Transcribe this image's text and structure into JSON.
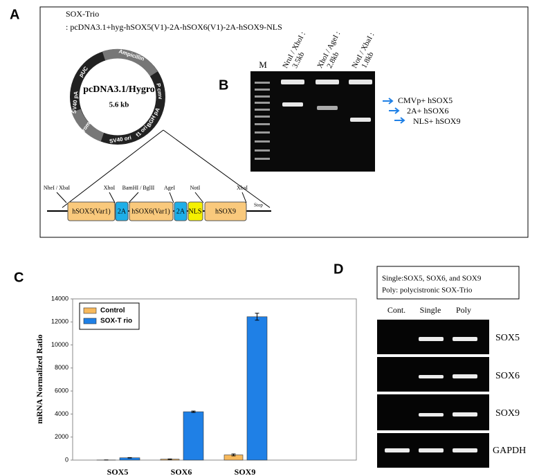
{
  "panel_a": {
    "letter": "A",
    "construct_name": "SOX-Trio",
    "construct_description": ": pcDNA3.1+hyg-hSOX5(V1)-2A-hSOX6(V1)-2A-hSOX9-NLS",
    "plasmid": {
      "name": "pcDNA3.1/Hygro",
      "size": "5.6 kb",
      "features": [
        "Ampicillin",
        "P cmv",
        "BGH pA",
        "f1 ori",
        "SV40 ori",
        "Hygromycin",
        "SV40 pA",
        "pUC"
      ]
    },
    "insert": {
      "sites": [
        "NheI / XbaI",
        "XhoI",
        "BamHI / BglII",
        "AgeI",
        "NotI",
        "XbaI"
      ],
      "elements": [
        "hSOX5(Var1)",
        "2A",
        "hSOX6(Var1)",
        "2A",
        "NLS",
        "hSOX9"
      ],
      "stop": "Stop"
    }
  },
  "panel_b": {
    "letter": "B",
    "marker": "M",
    "lanes": [
      {
        "enzymes": "NruI / XhoI :",
        "size": "3.5kb"
      },
      {
        "enzymes": "XhoI / AgeI :",
        "size": "2.8kb"
      },
      {
        "enzymes": "NotI / XbaI :",
        "size": "1.8kb"
      }
    ],
    "bands": [
      "CMVp+ hSOX5",
      "2A+ hSOX6",
      "NLS+ hSOX9"
    ]
  },
  "chart_data": {
    "type": "bar",
    "panel_label": "C",
    "y_label": "mRNA  Normalized Ratio",
    "categories": [
      "SOX5",
      "SOX6",
      "SOX9"
    ],
    "series": [
      {
        "name": "Control",
        "color": "#f7b95c",
        "values": [
          10,
          80,
          450
        ],
        "errors": [
          5,
          20,
          80
        ]
      },
      {
        "name": "SOX-T rio",
        "color": "#1f80e6",
        "values": [
          200,
          4200,
          12450
        ],
        "errors": [
          20,
          60,
          300
        ]
      }
    ],
    "ylim": [
      0,
      14000
    ],
    "yticks": [
      0,
      2000,
      4000,
      6000,
      8000,
      10000,
      12000,
      14000
    ],
    "grid": false,
    "legend": "top-left"
  },
  "panel_d": {
    "letter": "D",
    "legend": [
      "Single:SOX5,  SOX6, and SOX9",
      "Poly: polycistronic SOX-Trio"
    ],
    "columns": [
      "Cont.",
      "Single",
      "Poly"
    ],
    "rows": [
      "SOX5",
      "SOX6",
      "SOX9",
      "GAPDH"
    ]
  }
}
